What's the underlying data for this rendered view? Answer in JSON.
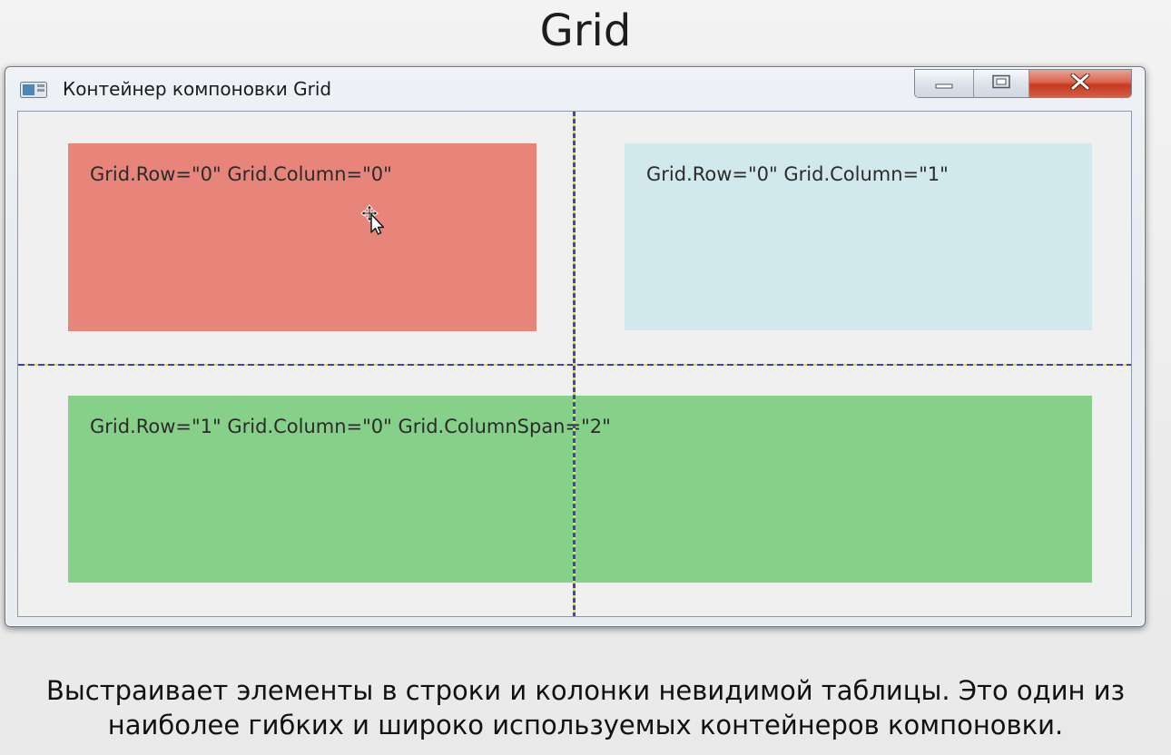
{
  "slide": {
    "title": "Grid",
    "caption_line1": "Выстраивает элементы в строки и колонки невидимой таблицы. Это один из",
    "caption_line2": "наиболее гибких и широко используемых контейнеров компоновки."
  },
  "window": {
    "title": "Контейнер компоновки Grid",
    "icon": "window-app-icon",
    "controls": {
      "minimize_icon": "minimize-icon",
      "maximize_icon": "maximize-icon",
      "close_icon": "close-icon"
    }
  },
  "grid": {
    "cells": [
      {
        "label": "Grid.Row=\"0\" Grid.Column=\"0\"",
        "color": "#e8857a"
      },
      {
        "label": "Grid.Row=\"0\" Grid.Column=\"1\"",
        "color": "#d1e9ec"
      },
      {
        "label": "Grid.Row=\"1\" Grid.Column=\"0\" Grid.ColumnSpan=\"2\"",
        "color": "#86d08a"
      }
    ],
    "gridline_colors": [
      "#3a3de0",
      "#e4e04a"
    ]
  },
  "cursor": {
    "icon": "move-cursor-icon"
  }
}
